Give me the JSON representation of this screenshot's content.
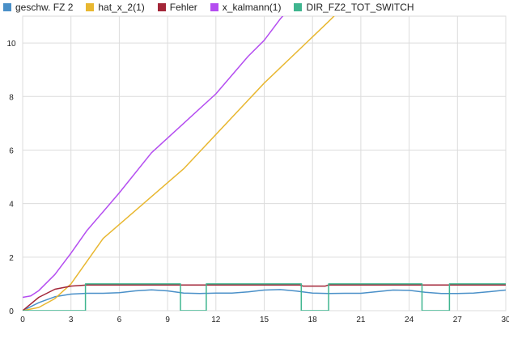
{
  "chart_data": {
    "type": "line",
    "xlim": [
      0,
      30
    ],
    "ylim": [
      0,
      11
    ],
    "grid": true,
    "legend_placement": "top-left",
    "x_ticks": [
      0,
      3,
      6,
      9,
      12,
      15,
      18,
      21,
      24,
      27,
      30
    ],
    "y_ticks": [
      0,
      2,
      4,
      6,
      8,
      10
    ],
    "series": [
      {
        "name": "geschw. FZ 2",
        "color": "#4a90c8",
        "x": [
          0,
          1,
          2,
          3,
          4,
          5,
          6,
          7,
          8,
          9,
          10,
          11,
          12,
          13,
          14,
          15,
          16,
          17,
          18,
          19,
          20,
          21,
          22,
          23,
          24,
          25,
          26,
          27,
          28,
          29,
          30
        ],
        "y": [
          0,
          0.3,
          0.52,
          0.62,
          0.65,
          0.65,
          0.67,
          0.74,
          0.78,
          0.74,
          0.66,
          0.64,
          0.66,
          0.66,
          0.7,
          0.77,
          0.79,
          0.73,
          0.66,
          0.64,
          0.65,
          0.65,
          0.71,
          0.77,
          0.76,
          0.69,
          0.64,
          0.64,
          0.66,
          0.71,
          0.77
        ]
      },
      {
        "name": "hat_x_2(1)",
        "color": "#e8b730",
        "x": [
          0,
          1,
          2,
          3,
          5,
          10,
          15,
          19,
          20
        ],
        "y": [
          0,
          0.12,
          0.45,
          1.0,
          2.7,
          5.3,
          8.5,
          10.8,
          11.4
        ]
      },
      {
        "name": "Fehler",
        "color": "#a32638",
        "x": [
          0,
          1,
          2,
          3,
          4,
          6,
          10,
          12,
          17.2,
          17.4,
          18.8,
          19,
          30
        ],
        "y": [
          0,
          0.5,
          0.8,
          0.92,
          0.96,
          0.96,
          0.96,
          0.96,
          0.96,
          0.92,
          0.92,
          0.96,
          0.96
        ]
      },
      {
        "name": "x_kalmann(1)",
        "color": "#b44df0",
        "x": [
          0,
          0.5,
          1,
          2,
          3,
          4,
          5,
          6,
          8,
          10,
          12,
          14,
          15,
          16,
          16.3
        ],
        "y": [
          0.5,
          0.55,
          0.75,
          1.35,
          2.15,
          3.0,
          3.7,
          4.4,
          5.9,
          7.0,
          8.1,
          9.5,
          10.1,
          10.9,
          11.1
        ]
      },
      {
        "name": "DIR_FZ2_TOT_SWITCH",
        "color": "#3fb58f",
        "x": [
          0,
          3.9,
          3.9,
          9.8,
          9.8,
          11.4,
          11.4,
          17.3,
          17.3,
          19.0,
          19.0,
          24.8,
          24.8,
          26.5,
          26.5,
          30
        ],
        "y": [
          0,
          0,
          1,
          1,
          0,
          0,
          1,
          1,
          0,
          0,
          1,
          1,
          0,
          0,
          1,
          1
        ]
      }
    ]
  }
}
